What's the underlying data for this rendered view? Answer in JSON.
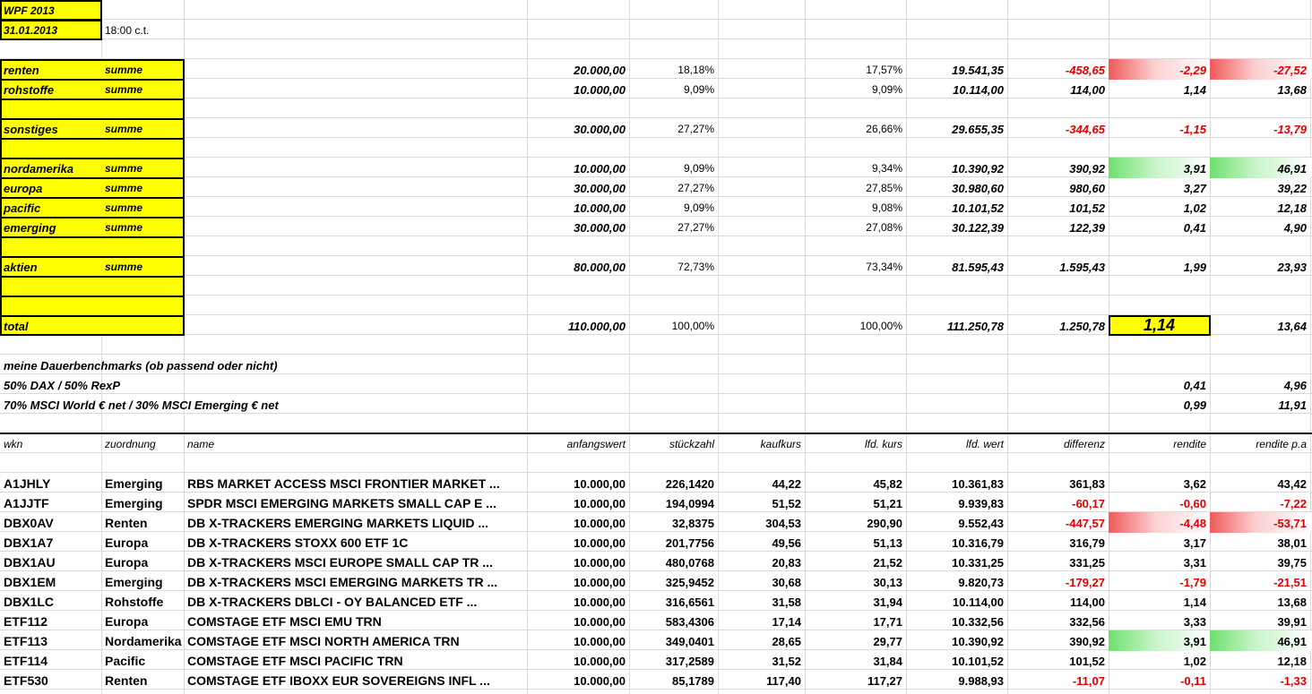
{
  "header": {
    "title": "WPF 2013",
    "date": "31.01.2013",
    "time": "18:00 c.t."
  },
  "summary": [
    {
      "label": "renten",
      "sub": "summe",
      "anfangswert": "20.000,00",
      "anteil": "18,18%",
      "lfd_anteil": "17,57%",
      "lfd_wert": "19.541,35",
      "differenz": "-458,65",
      "rendite": "-2,29",
      "rendite_pa": "-27,52"
    },
    {
      "label": "rohstoffe",
      "sub": "summe",
      "anfangswert": "10.000,00",
      "anteil": "9,09%",
      "lfd_anteil": "9,09%",
      "lfd_wert": "10.114,00",
      "differenz": "114,00",
      "rendite": "1,14",
      "rendite_pa": "13,68"
    },
    {
      "label": "sonstiges",
      "sub": "summe",
      "anfangswert": "30.000,00",
      "anteil": "27,27%",
      "lfd_anteil": "26,66%",
      "lfd_wert": "29.655,35",
      "differenz": "-344,65",
      "rendite": "-1,15",
      "rendite_pa": "-13,79"
    },
    {
      "label": "nordamerika",
      "sub": "summe",
      "anfangswert": "10.000,00",
      "anteil": "9,09%",
      "lfd_anteil": "9,34%",
      "lfd_wert": "10.390,92",
      "differenz": "390,92",
      "rendite": "3,91",
      "rendite_pa": "46,91"
    },
    {
      "label": "europa",
      "sub": "summe",
      "anfangswert": "30.000,00",
      "anteil": "27,27%",
      "lfd_anteil": "27,85%",
      "lfd_wert": "30.980,60",
      "differenz": "980,60",
      "rendite": "3,27",
      "rendite_pa": "39,22"
    },
    {
      "label": "pacific",
      "sub": "summe",
      "anfangswert": "10.000,00",
      "anteil": "9,09%",
      "lfd_anteil": "9,08%",
      "lfd_wert": "10.101,52",
      "differenz": "101,52",
      "rendite": "1,02",
      "rendite_pa": "12,18"
    },
    {
      "label": "emerging",
      "sub": "summe",
      "anfangswert": "30.000,00",
      "anteil": "27,27%",
      "lfd_anteil": "27,08%",
      "lfd_wert": "30.122,39",
      "differenz": "122,39",
      "rendite": "0,41",
      "rendite_pa": "4,90"
    },
    {
      "label": "aktien",
      "sub": "summe",
      "anfangswert": "80.000,00",
      "anteil": "72,73%",
      "lfd_anteil": "73,34%",
      "lfd_wert": "81.595,43",
      "differenz": "1.595,43",
      "rendite": "1,99",
      "rendite_pa": "23,93"
    },
    {
      "label": "total",
      "anfangswert": "110.000,00",
      "anteil": "100,00%",
      "lfd_anteil": "100,00%",
      "lfd_wert": "111.250,78",
      "differenz": "1.250,78",
      "rendite": "1,14",
      "rendite_pa": "13,64"
    }
  ],
  "benchmarks": {
    "title": "meine Dauerbenchmarks (ob passend oder nicht)",
    "items": [
      {
        "name": "50% DAX / 50% RexP",
        "rendite": "0,41",
        "rendite_pa": "4,96"
      },
      {
        "name": "70% MSCI World € net / 30% MSCI Emerging € net",
        "rendite": "0,99",
        "rendite_pa": "11,91"
      }
    ]
  },
  "positions": {
    "columns": [
      "wkn",
      "zuordnung",
      "name",
      "anfangswert",
      "stückzahl",
      "kaufkurs",
      "lfd. kurs",
      "lfd. wert",
      "differenz",
      "rendite",
      "rendite p.a"
    ],
    "rows": [
      [
        "A1JHLY",
        "Emerging",
        "RBS MARKET ACCESS MSCI FRONTIER MARKET ...",
        "10.000,00",
        "226,1420",
        "44,22",
        "45,82",
        "10.361,83",
        "361,83",
        "3,62",
        "43,42"
      ],
      [
        "A1JJTF",
        "Emerging",
        "SPDR MSCI EMERGING MARKETS SMALL CAP E ...",
        "10.000,00",
        "194,0994",
        "51,52",
        "51,21",
        "9.939,83",
        "-60,17",
        "-0,60",
        "-7,22"
      ],
      [
        "DBX0AV",
        "Renten",
        "DB X-TRACKERS EMERGING MARKETS LIQUID ...",
        "10.000,00",
        "32,8375",
        "304,53",
        "290,90",
        "9.552,43",
        "-447,57",
        "-4,48",
        "-53,71"
      ],
      [
        "DBX1A7",
        "Europa",
        "DB X-TRACKERS STOXX 600 ETF 1C",
        "10.000,00",
        "201,7756",
        "49,56",
        "51,13",
        "10.316,79",
        "316,79",
        "3,17",
        "38,01"
      ],
      [
        "DBX1AU",
        "Europa",
        "DB X-TRACKERS MSCI EUROPE SMALL CAP TR ...",
        "10.000,00",
        "480,0768",
        "20,83",
        "21,52",
        "10.331,25",
        "331,25",
        "3,31",
        "39,75"
      ],
      [
        "DBX1EM",
        "Emerging",
        "DB X-TRACKERS MSCI EMERGING MARKETS TR ...",
        "10.000,00",
        "325,9452",
        "30,68",
        "30,13",
        "9.820,73",
        "-179,27",
        "-1,79",
        "-21,51"
      ],
      [
        "DBX1LC",
        "Rohstoffe",
        "DB X-TRACKERS DBLCI - OY BALANCED ETF ...",
        "10.000,00",
        "316,6561",
        "31,58",
        "31,94",
        "10.114,00",
        "114,00",
        "1,14",
        "13,68"
      ],
      [
        "ETF112",
        "Europa",
        "COMSTAGE ETF MSCI EMU TRN",
        "10.000,00",
        "583,4306",
        "17,14",
        "17,71",
        "10.332,56",
        "332,56",
        "3,33",
        "39,91"
      ],
      [
        "ETF113",
        "Nordamerika",
        "COMSTAGE ETF MSCI NORTH AMERICA TRN",
        "10.000,00",
        "349,0401",
        "28,65",
        "29,77",
        "10.390,92",
        "390,92",
        "3,91",
        "46,91"
      ],
      [
        "ETF114",
        "Pacific",
        "COMSTAGE ETF MSCI PACIFIC TRN",
        "10.000,00",
        "317,2589",
        "31,52",
        "31,84",
        "10.101,52",
        "101,52",
        "1,02",
        "12,18"
      ],
      [
        "ETF530",
        "Renten",
        "COMSTAGE ETF IBOXX EUR SOVEREIGNS INFL ...",
        "10.000,00",
        "85,1789",
        "117,40",
        "117,27",
        "9.988,93",
        "-11,07",
        "-0,11",
        "-1,33"
      ]
    ]
  }
}
